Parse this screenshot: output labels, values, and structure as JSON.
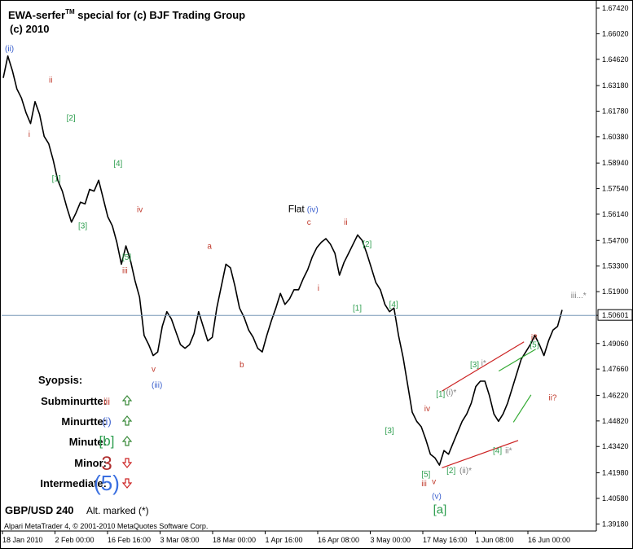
{
  "header": {
    "title": "EWA-serfer",
    "title_tm": "TM",
    "title_rest": " special for (c) BJF Trading Group",
    "subtitle": "(c) 2010"
  },
  "symbol_label": "GBP/USD 240",
  "alt_marked": "Alt. marked (*)",
  "footer_text": "Alpari MetaTrader 4, © 2001-2010 MetaQuotes Software Corp.",
  "current_price": "1.50601",
  "synopsis": {
    "heading": "Syopsis:",
    "rows": [
      {
        "label": "Subminurtte:",
        "wave": "iii",
        "direction": "up",
        "color": "#c0392b"
      },
      {
        "label": "Minurtte:",
        "wave": "(i)",
        "direction": "up",
        "color": "#3a5fcd"
      },
      {
        "label": "Minute:",
        "wave": "[b]",
        "direction": "up",
        "color": "#2e9e4f"
      },
      {
        "label": "Minor:",
        "wave": "3",
        "direction": "down",
        "color": "#b03030"
      },
      {
        "label": "Intermediate:",
        "wave": "(5)",
        "direction": "down",
        "color": "#3a6fe0"
      }
    ]
  },
  "colors": {
    "price": "#000000",
    "subminuette": "#c0392b",
    "minuette": "#3a5fcd",
    "minute": "#2e9e4f",
    "alt": "#808080",
    "channel_red": "#cc2222",
    "channel_green": "#33aa33",
    "current_line": "#7a9ab8"
  },
  "chart_data": {
    "type": "line",
    "title": "EWA-serfer special for (c) BJF Trading Group",
    "xlabel": "",
    "ylabel": "",
    "ylim": [
      1.3915,
      1.6742
    ],
    "y_ticks": [
      "1.67420",
      "1.66020",
      "1.64620",
      "1.63180",
      "1.61780",
      "1.60380",
      "1.58940",
      "1.57540",
      "1.56140",
      "1.54700",
      "1.53300",
      "1.51900",
      "1.50601",
      "1.49060",
      "1.47660",
      "1.46220",
      "1.44820",
      "1.43420",
      "1.41980",
      "1.40580",
      "1.39180"
    ],
    "x_ticks": [
      "18 Jan 2010",
      "2 Feb 00:00",
      "16 Feb 16:00",
      "3 Mar 08:00",
      "18 Mar 00:00",
      "1 Apr 16:00",
      "16 Apr 08:00",
      "3 May 00:00",
      "17 May 16:00",
      "1 Jun 08:00",
      "16 Jun 00:00"
    ],
    "series": [
      {
        "values": [
          1.636,
          1.648,
          1.64,
          1.63,
          1.625,
          1.617,
          1.611,
          1.623,
          1.616,
          1.604,
          1.6,
          1.591,
          1.58,
          1.574,
          1.565,
          1.557,
          1.562,
          1.568,
          1.567,
          1.575,
          1.574,
          1.58,
          1.57,
          1.56,
          1.555,
          1.546,
          1.534,
          1.544,
          1.536,
          1.525,
          1.516,
          1.495,
          1.49,
          1.484,
          1.486,
          1.5,
          1.508,
          1.504,
          1.497,
          1.49,
          1.488,
          1.49,
          1.496,
          1.508,
          1.5,
          1.492,
          1.494,
          1.51,
          1.522,
          1.534,
          1.532,
          1.522,
          1.51,
          1.505,
          1.498,
          1.494,
          1.488,
          1.486,
          1.495,
          1.503,
          1.51,
          1.518,
          1.512,
          1.515,
          1.52,
          1.52,
          1.526,
          1.531,
          1.538,
          1.543,
          1.546,
          1.548,
          1.545,
          1.54,
          1.528,
          1.535,
          1.54,
          1.545,
          1.55,
          1.547,
          1.54,
          1.532,
          1.524,
          1.52,
          1.512,
          1.508,
          1.51,
          1.495,
          1.483,
          1.468,
          1.453,
          1.448,
          1.445,
          1.438,
          1.43,
          1.428,
          1.424,
          1.432,
          1.43,
          1.436,
          1.442,
          1.448,
          1.452,
          1.458,
          1.467,
          1.47,
          1.47,
          1.462,
          1.452,
          1.448,
          1.452,
          1.458,
          1.466,
          1.474,
          1.482,
          1.486,
          1.49,
          1.495,
          1.49,
          1.484,
          1.492,
          1.498,
          1.5,
          1.509
        ]
      }
    ],
    "wave_labels": [
      {
        "text": "(ii)",
        "x": 0.0,
        "y": 1.6505,
        "color": "minuette"
      },
      {
        "text": "ii",
        "x": 0.075,
        "y": 1.6335,
        "color": "subminuette"
      },
      {
        "text": "i",
        "x": 0.04,
        "y": 1.6038,
        "color": "subminuette"
      },
      {
        "text": "[2]",
        "x": 0.105,
        "y": 1.6127,
        "color": "minute"
      },
      {
        "text": "[1]",
        "x": 0.08,
        "y": 1.5795,
        "color": "minute"
      },
      {
        "text": "[4]",
        "x": 0.185,
        "y": 1.5878,
        "color": "minute"
      },
      {
        "text": "[3]",
        "x": 0.125,
        "y": 1.5535,
        "color": "minute"
      },
      {
        "text": "iv",
        "x": 0.225,
        "y": 1.5625,
        "color": "subminuette"
      },
      {
        "text": "[5]",
        "x": 0.2,
        "y": 1.5365,
        "color": "minute"
      },
      {
        "text": "iii",
        "x": 0.2,
        "y": 1.529,
        "color": "subminuette"
      },
      {
        "text": "v",
        "x": 0.25,
        "y": 1.4752,
        "color": "subminuette"
      },
      {
        "text": "(iii)",
        "x": 0.25,
        "y": 1.4665,
        "color": "minuette"
      },
      {
        "text": "a",
        "x": 0.345,
        "y": 1.5425,
        "color": "subminuette"
      },
      {
        "text": "b",
        "x": 0.4,
        "y": 1.4775,
        "color": "subminuette"
      },
      {
        "text": "Flat",
        "x": 0.483,
        "y": 1.5625,
        "color": "price"
      },
      {
        "text": "(iv)",
        "x": 0.515,
        "y": 1.5625,
        "color": "minuette"
      },
      {
        "text": "c",
        "x": 0.515,
        "y": 1.5555,
        "color": "subminuette"
      },
      {
        "text": "i",
        "x": 0.533,
        "y": 1.5195,
        "color": "subminuette"
      },
      {
        "text": "ii",
        "x": 0.578,
        "y": 1.5555,
        "color": "subminuette"
      },
      {
        "text": "[2]",
        "x": 0.61,
        "y": 1.5435,
        "color": "minute"
      },
      {
        "text": "[1]",
        "x": 0.593,
        "y": 1.5085,
        "color": "minute"
      },
      {
        "text": "[4]",
        "x": 0.655,
        "y": 1.5105,
        "color": "minute"
      },
      {
        "text": "[3]",
        "x": 0.648,
        "y": 1.4415,
        "color": "minute"
      },
      {
        "text": "iv",
        "x": 0.715,
        "y": 1.4535,
        "color": "subminuette"
      },
      {
        "text": "[1]",
        "x": 0.735,
        "y": 1.4615,
        "color": "minute"
      },
      {
        "text": "(i)*",
        "x": 0.752,
        "y": 1.4625,
        "color": "alt"
      },
      {
        "text": "[5]",
        "x": 0.71,
        "y": 1.4175,
        "color": "minute"
      },
      {
        "text": "v",
        "x": 0.728,
        "y": 1.4135,
        "color": "subminuette"
      },
      {
        "text": "iii",
        "x": 0.71,
        "y": 1.4125,
        "color": "subminuette"
      },
      {
        "text": "(v)",
        "x": 0.728,
        "y": 1.4055,
        "color": "minuette"
      },
      {
        "text": "[a]",
        "x": 0.73,
        "y": 1.3975,
        "color": "minute"
      },
      {
        "text": "[2]",
        "x": 0.753,
        "y": 1.4195,
        "color": "minute"
      },
      {
        "text": "(ii)*",
        "x": 0.775,
        "y": 1.4195,
        "color": "alt"
      },
      {
        "text": "[3]",
        "x": 0.793,
        "y": 1.4775,
        "color": "minute"
      },
      {
        "text": "i*",
        "x": 0.812,
        "y": 1.4785,
        "color": "alt"
      },
      {
        "text": "[4]",
        "x": 0.832,
        "y": 1.4305,
        "color": "minute"
      },
      {
        "text": "ii*",
        "x": 0.853,
        "y": 1.4305,
        "color": "alt"
      },
      {
        "text": "i?",
        "x": 0.897,
        "y": 1.4925,
        "color": "subminuette"
      },
      {
        "text": "[5]",
        "x": 0.895,
        "y": 1.4885,
        "color": "minute"
      },
      {
        "text": "ii?",
        "x": 0.927,
        "y": 1.4595,
        "color": "subminuette"
      },
      {
        "text": "iii...*",
        "x": 0.965,
        "y": 1.5155,
        "color": "alt"
      }
    ],
    "channels": [
      {
        "from": [
          0.745,
          1.4645
        ],
        "to": [
          0.885,
          1.4915
        ],
        "color": "channel_red"
      },
      {
        "from": [
          0.745,
          1.4225
        ],
        "to": [
          0.875,
          1.4375
        ],
        "color": "channel_red"
      },
      {
        "from": [
          0.842,
          1.4755
        ],
        "to": [
          0.905,
          1.4875
        ],
        "color": "channel_green"
      },
      {
        "from": [
          0.867,
          1.4475
        ],
        "to": [
          0.897,
          1.4625
        ],
        "color": "channel_green"
      }
    ]
  }
}
